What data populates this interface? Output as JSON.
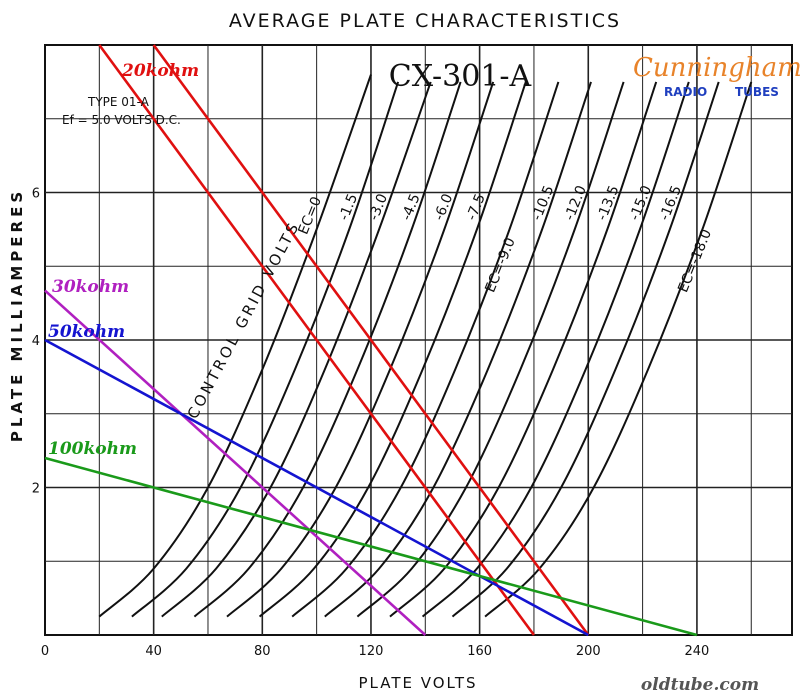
{
  "chart_data": {
    "type": "line",
    "title": "AVERAGE PLATE CHARACTERISTICS",
    "tube_name": "CX-301-A",
    "type_note": [
      "TYPE 01-A",
      "Ef = 5.0 VOLTS D.C."
    ],
    "xlabel": "PLATE VOLTS",
    "ylabel": "PLATE MILLIAMPERES",
    "xlim": [
      0,
      275
    ],
    "ylim": [
      0,
      8
    ],
    "xticks": [
      0,
      40,
      80,
      120,
      160,
      200,
      240
    ],
    "yticks": [
      2,
      4,
      6
    ],
    "grid": true,
    "grid_label": "CONTROL GRID VOLTS",
    "curve_labels": [
      "EC=0",
      "-1.5",
      "-3.0",
      "-4.5",
      "-6.0",
      "-7.5",
      "EC=-9.0",
      "-10.5",
      "-12.0",
      "-13.5",
      "-15.0",
      "-16.5",
      "EC=-18.0"
    ],
    "grid_curves": [
      {
        "grid_volts": 0,
        "x": [
          20,
          40,
          60,
          80,
          100,
          120
        ],
        "y": [
          0.25,
          0.9,
          2.0,
          3.6,
          5.5,
          7.6
        ]
      },
      {
        "grid_volts": -1.5,
        "x": [
          32,
          52,
          72,
          92,
          112,
          130
        ],
        "y": [
          0.25,
          0.9,
          2.0,
          3.6,
          5.5,
          7.5
        ]
      },
      {
        "grid_volts": -3.0,
        "x": [
          43,
          63,
          83,
          103,
          123,
          142
        ],
        "y": [
          0.25,
          0.9,
          2.0,
          3.6,
          5.5,
          7.5
        ]
      },
      {
        "grid_volts": -4.5,
        "x": [
          55,
          75,
          95,
          115,
          135,
          153
        ],
        "y": [
          0.25,
          0.9,
          2.0,
          3.6,
          5.5,
          7.5
        ]
      },
      {
        "grid_volts": -6.0,
        "x": [
          67,
          87,
          107,
          127,
          147,
          165
        ],
        "y": [
          0.25,
          0.9,
          2.0,
          3.6,
          5.5,
          7.5
        ]
      },
      {
        "grid_volts": -7.5,
        "x": [
          79,
          99,
          119,
          139,
          159,
          177
        ],
        "y": [
          0.25,
          0.9,
          2.0,
          3.6,
          5.5,
          7.5
        ]
      },
      {
        "grid_volts": -9.0,
        "x": [
          91,
          111,
          131,
          151,
          171,
          189
        ],
        "y": [
          0.25,
          0.9,
          2.0,
          3.6,
          5.5,
          7.5
        ]
      },
      {
        "grid_volts": -10.5,
        "x": [
          103,
          123,
          143,
          163,
          183,
          201
        ],
        "y": [
          0.25,
          0.9,
          2.0,
          3.6,
          5.5,
          7.5
        ]
      },
      {
        "grid_volts": -12.0,
        "x": [
          115,
          135,
          155,
          175,
          195,
          213
        ],
        "y": [
          0.25,
          0.9,
          2.0,
          3.6,
          5.5,
          7.5
        ]
      },
      {
        "grid_volts": -13.5,
        "x": [
          127,
          147,
          167,
          187,
          207,
          225
        ],
        "y": [
          0.25,
          0.9,
          2.0,
          3.6,
          5.5,
          7.5
        ]
      },
      {
        "grid_volts": -15.0,
        "x": [
          139,
          159,
          179,
          199,
          219,
          237
        ],
        "y": [
          0.25,
          0.9,
          2.0,
          3.6,
          5.5,
          7.5
        ]
      },
      {
        "grid_volts": -16.5,
        "x": [
          150,
          170,
          190,
          210,
          230,
          248
        ],
        "y": [
          0.25,
          0.9,
          2.0,
          3.6,
          5.5,
          7.5
        ]
      },
      {
        "grid_volts": -18.0,
        "x": [
          162,
          182,
          202,
          222,
          242,
          260
        ],
        "y": [
          0.25,
          0.9,
          2.0,
          3.6,
          5.5,
          7.5
        ]
      }
    ],
    "load_lines": [
      {
        "name": "20kohm",
        "color": "#e01010",
        "x": [
          20,
          180
        ],
        "y": [
          8,
          0
        ]
      },
      {
        "name": "20kohm",
        "color": "#e01010",
        "x": [
          40,
          200
        ],
        "y": [
          8,
          0
        ]
      },
      {
        "name": "30kohm",
        "color": "#b020c0",
        "x": [
          0,
          140
        ],
        "y": [
          4.67,
          0
        ]
      },
      {
        "name": "50kohm",
        "color": "#1414d0",
        "x": [
          0,
          200
        ],
        "y": [
          4.0,
          0
        ]
      },
      {
        "name": "100kohm",
        "color": "#1a9a1a",
        "x": [
          0,
          240
        ],
        "y": [
          2.4,
          0
        ]
      }
    ],
    "load_labels": [
      {
        "text": "20kohm",
        "color": "#e01010"
      },
      {
        "text": "30kohm",
        "color": "#b020c0"
      },
      {
        "text": "50kohm",
        "color": "#1414d0"
      },
      {
        "text": "100kohm",
        "color": "#1a9a1a"
      }
    ]
  },
  "brand": {
    "name": "Cunningham",
    "left": "RADIO",
    "right": "TUBES"
  },
  "watermark": "oldtube.com"
}
